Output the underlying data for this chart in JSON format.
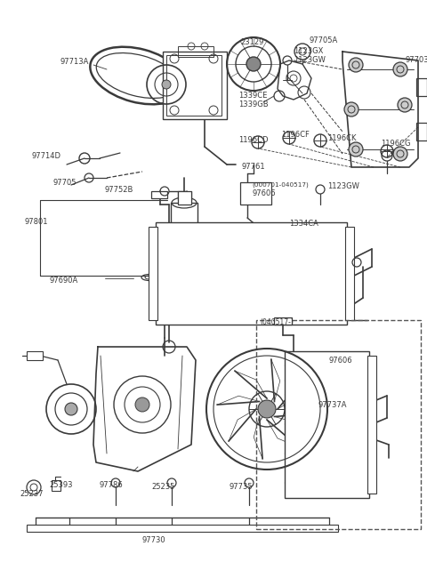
{
  "bg_color": "#ffffff",
  "lc": "#3a3a3a",
  "tc": "#3a3a3a",
  "figsize": [
    4.8,
    6.59
  ],
  "dpi": 100,
  "xlim": [
    0,
    480
  ],
  "ylim": [
    0,
    659
  ]
}
